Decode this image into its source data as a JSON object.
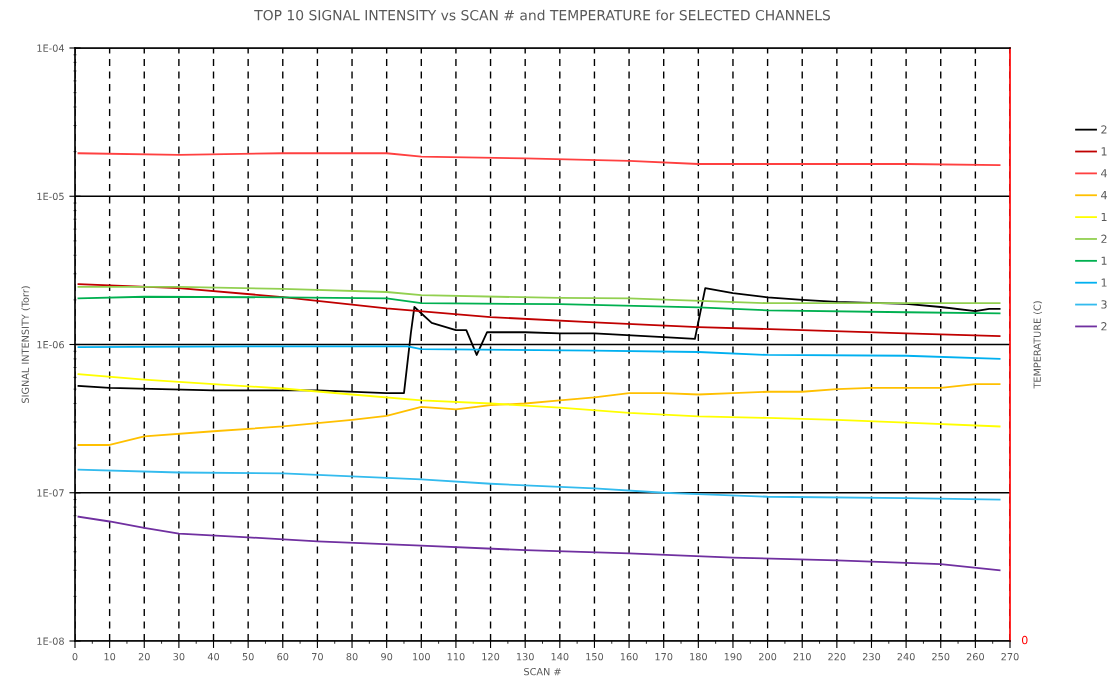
{
  "chart_data": {
    "type": "line",
    "title": "TOP 10 SIGNAL INTENSITY vs SCAN # and TEMPERATURE for SELECTED CHANNELS",
    "xlabel": "SCAN #",
    "ylabel": "SIGNAL INTENSITY (Torr)",
    "y2label": "TEMPERATURE (C)",
    "log": "y",
    "xlim": [
      0,
      270
    ],
    "xticks": [
      0,
      10,
      20,
      30,
      40,
      50,
      60,
      70,
      80,
      90,
      100,
      110,
      120,
      130,
      140,
      150,
      160,
      170,
      180,
      190,
      200,
      210,
      220,
      230,
      240,
      250,
      260,
      270
    ],
    "ylim": [
      1e-08,
      0.0001
    ],
    "yticks": [
      {
        "value": 1e-08,
        "label": "1E-08"
      },
      {
        "value": 1e-07,
        "label": "1E-07"
      },
      {
        "value": 1e-06,
        "label": "1E-06"
      },
      {
        "value": 1e-05,
        "label": "1E-05"
      },
      {
        "value": 0.0001,
        "label": "1E-04"
      }
    ],
    "annotations": [
      "0"
    ],
    "grid": true,
    "legend": "right",
    "marker": "none",
    "line_style": "solid",
    "series": [
      {
        "name": "2",
        "color": "#000000",
        "x": [
          1,
          10,
          40,
          70,
          90,
          95,
          97,
          98,
          103,
          110,
          113,
          116,
          119,
          130,
          140,
          150,
          170,
          179,
          182,
          190,
          200,
          210,
          220,
          230,
          240,
          250,
          260,
          264,
          267
        ],
        "values": [
          5.25e-07,
          5.1e-07,
          4.9e-07,
          4.9e-07,
          4.7e-07,
          4.7e-07,
          1.2e-06,
          1.79e-06,
          1.4e-06,
          1.25e-06,
          1.25e-06,
          8.5e-07,
          1.21e-06,
          1.21e-06,
          1.19e-06,
          1.19e-06,
          1.12e-06,
          1.09e-06,
          2.4e-06,
          2.22e-06,
          2.08e-06,
          2e-06,
          1.94e-06,
          1.91e-06,
          1.88e-06,
          1.79e-06,
          1.68e-06,
          1.74e-06,
          1.74e-06
        ]
      },
      {
        "name": "1",
        "color": "#c00000",
        "x": [
          1,
          30,
          60,
          90,
          120,
          150,
          180,
          210,
          240,
          267
        ],
        "values": [
          2.55e-06,
          2.4e-06,
          2.09e-06,
          1.75e-06,
          1.53e-06,
          1.41e-06,
          1.31e-06,
          1.25e-06,
          1.19e-06,
          1.14e-06
        ]
      },
      {
        "name": "4",
        "color": "#ff4040",
        "x": [
          1,
          30,
          60,
          90,
          100,
          130,
          160,
          180,
          210,
          240,
          267
        ],
        "values": [
          1.95e-05,
          1.9e-05,
          1.95e-05,
          1.95e-05,
          1.85e-05,
          1.8e-05,
          1.73e-05,
          1.65e-05,
          1.65e-05,
          1.65e-05,
          1.62e-05
        ]
      },
      {
        "name": "4",
        "color": "#ffc000",
        "x": [
          1,
          10,
          20,
          40,
          60,
          80,
          90,
          100,
          110,
          120,
          130,
          140,
          150,
          160,
          170,
          180,
          190,
          200,
          210,
          220,
          230,
          240,
          250,
          260,
          267
        ],
        "values": [
          2.1e-07,
          2.1e-07,
          2.4e-07,
          2.6e-07,
          2.8e-07,
          3.1e-07,
          3.3e-07,
          3.8e-07,
          3.65e-07,
          3.9e-07,
          4e-07,
          4.2e-07,
          4.4e-07,
          4.7e-07,
          4.7e-07,
          4.6e-07,
          4.7e-07,
          4.8e-07,
          4.8e-07,
          5e-07,
          5.1e-07,
          5.1e-07,
          5.1e-07,
          5.4e-07,
          5.4e-07
        ]
      },
      {
        "name": "1",
        "color": "#ffff00",
        "x": [
          1,
          20,
          40,
          60,
          80,
          100,
          120,
          140,
          160,
          180,
          200,
          220,
          240,
          267
        ],
        "values": [
          6.3e-07,
          5.8e-07,
          5.4e-07,
          5.05e-07,
          4.6e-07,
          4.2e-07,
          4e-07,
          3.75e-07,
          3.46e-07,
          3.27e-07,
          3.2e-07,
          3.1e-07,
          2.97e-07,
          2.8e-07
        ]
      },
      {
        "name": "2",
        "color": "#92d050",
        "x": [
          1,
          30,
          60,
          90,
          100,
          140,
          160,
          200,
          240,
          267
        ],
        "values": [
          2.45e-06,
          2.45e-06,
          2.37e-06,
          2.26e-06,
          2.15e-06,
          2.06e-06,
          2.05e-06,
          1.9e-06,
          1.9e-06,
          1.9e-06
        ]
      },
      {
        "name": "1",
        "color": "#00b050",
        "x": [
          1,
          20,
          60,
          90,
          100,
          140,
          180,
          200,
          240,
          267
        ],
        "values": [
          2.05e-06,
          2.1e-06,
          2.08e-06,
          2.05e-06,
          1.9e-06,
          1.87e-06,
          1.78e-06,
          1.7e-06,
          1.65e-06,
          1.62e-06
        ]
      },
      {
        "name": "1",
        "color": "#00b0f0",
        "x": [
          1,
          50,
          96,
          100,
          150,
          180,
          200,
          240,
          267
        ],
        "values": [
          9.6e-07,
          9.7e-07,
          9.7e-07,
          9.3e-07,
          9.1e-07,
          8.9e-07,
          8.5e-07,
          8.4e-07,
          8e-07
        ]
      },
      {
        "name": "3",
        "color": "#33bbee",
        "x": [
          1,
          30,
          60,
          90,
          100,
          120,
          150,
          170,
          180,
          200,
          240,
          267
        ],
        "values": [
          1.43e-07,
          1.37e-07,
          1.35e-07,
          1.26e-07,
          1.23e-07,
          1.15e-07,
          1.07e-07,
          1e-07,
          9.8e-08,
          9.4e-08,
          9.2e-08,
          9e-08
        ]
      },
      {
        "name": "2",
        "color": "#7030a0",
        "x": [
          1,
          10,
          20,
          30,
          50,
          70,
          100,
          130,
          160,
          190,
          220,
          250,
          267
        ],
        "values": [
          6.9e-08,
          6.4e-08,
          5.8e-08,
          5.3e-08,
          5e-08,
          4.7e-08,
          4.4e-08,
          4.1e-08,
          3.9e-08,
          3.65e-08,
          3.5e-08,
          3.3e-08,
          3e-08
        ]
      }
    ]
  }
}
